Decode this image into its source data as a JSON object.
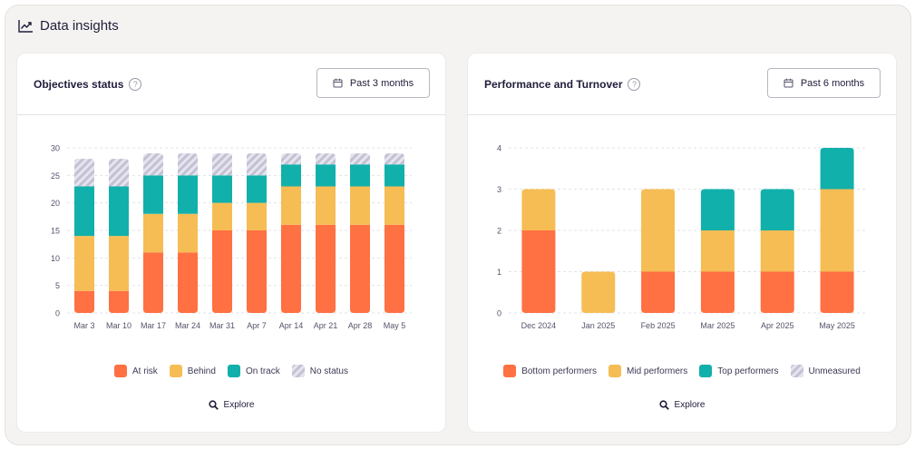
{
  "section": {
    "title": "Data insights"
  },
  "colors": {
    "at_risk": "#ff7043",
    "behind": "#f6bd55",
    "on_track": "#12b0ab",
    "no_status": "#cfcedb",
    "grid": "#e3e2e8",
    "axis_text": "#55536b"
  },
  "objectives": {
    "title": "Objectives status",
    "range_label": "Past 3 months",
    "explore_label": "Explore",
    "legend": [
      "At risk",
      "Behind",
      "On track",
      "No status"
    ]
  },
  "performance": {
    "title": "Performance and Turnover",
    "range_label": "Past 6 months",
    "explore_label": "Explore",
    "legend": [
      "Bottom performers",
      "Mid performers",
      "Top performers",
      "Unmeasured"
    ]
  },
  "chart_data": [
    {
      "type": "bar",
      "stacked": true,
      "title": "Objectives status",
      "categories": [
        "Mar 3",
        "Mar 10",
        "Mar 17",
        "Mar 24",
        "Mar 31",
        "Apr 7",
        "Apr 14",
        "Apr 21",
        "Apr 28",
        "May 5"
      ],
      "series": [
        {
          "name": "At risk",
          "values": [
            4,
            4,
            11,
            11,
            15,
            15,
            16,
            16,
            16,
            16
          ]
        },
        {
          "name": "Behind",
          "values": [
            10,
            10,
            7,
            7,
            5,
            5,
            7,
            7,
            7,
            7
          ]
        },
        {
          "name": "On track",
          "values": [
            9,
            9,
            7,
            7,
            5,
            5,
            4,
            4,
            4,
            4
          ]
        },
        {
          "name": "No status",
          "values": [
            5,
            5,
            4,
            4,
            4,
            4,
            2,
            2,
            2,
            2
          ]
        }
      ],
      "yticks": [
        0,
        5,
        10,
        15,
        20,
        25,
        30
      ],
      "ylim": [
        0,
        30
      ],
      "xlabel": "",
      "ylabel": "",
      "grid": true,
      "legend": "bottom"
    },
    {
      "type": "bar",
      "stacked": true,
      "title": "Performance and Turnover",
      "categories": [
        "Dec 2024",
        "Jan 2025",
        "Feb 2025",
        "Mar 2025",
        "Apr 2025",
        "May 2025"
      ],
      "series": [
        {
          "name": "Bottom performers",
          "values": [
            2,
            0,
            1,
            1,
            1,
            1
          ]
        },
        {
          "name": "Mid performers",
          "values": [
            1,
            1,
            2,
            1,
            1,
            2
          ]
        },
        {
          "name": "Top performers",
          "values": [
            0,
            0,
            0,
            1,
            1,
            1
          ]
        },
        {
          "name": "Unmeasured",
          "values": [
            0,
            0,
            0,
            0,
            0,
            0
          ]
        }
      ],
      "yticks": [
        0,
        1,
        2,
        3,
        4
      ],
      "ylim": [
        0,
        4
      ],
      "xlabel": "",
      "ylabel": "",
      "grid": true,
      "legend": "bottom"
    }
  ]
}
